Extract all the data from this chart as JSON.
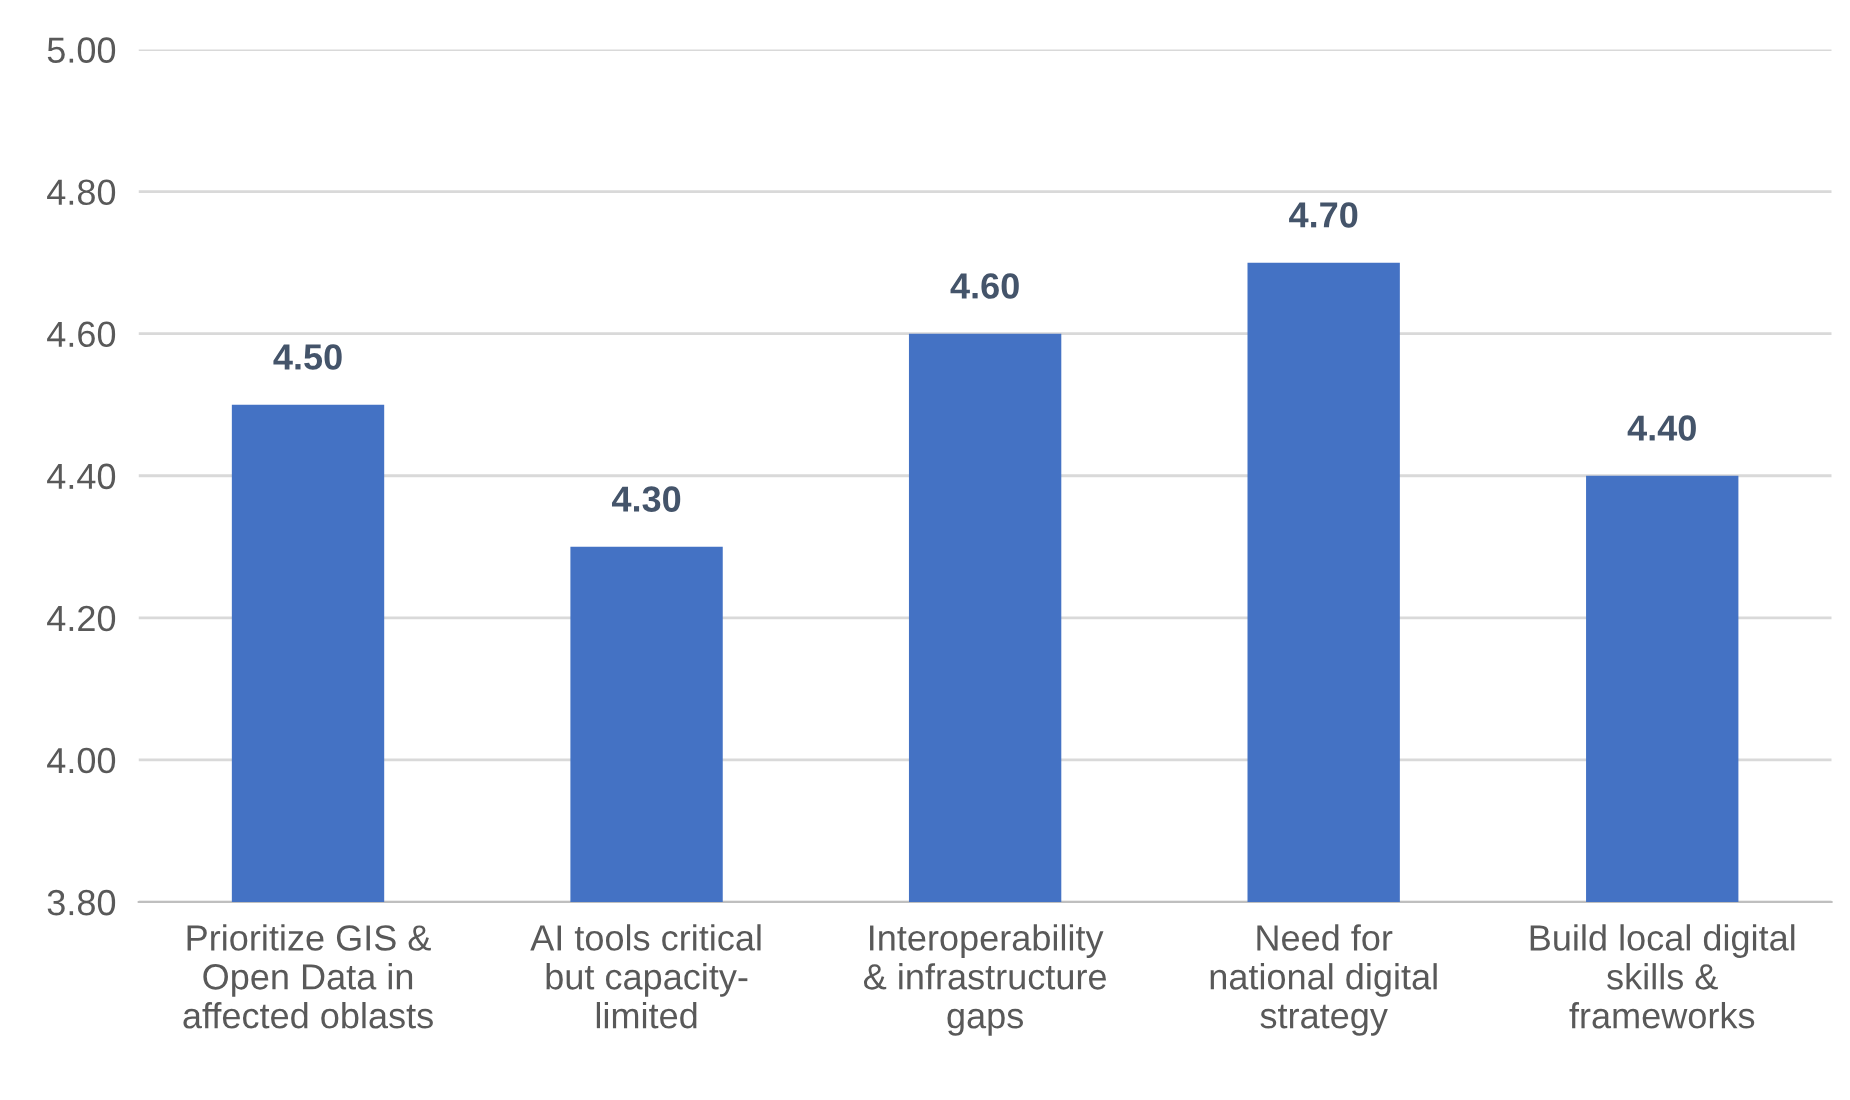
{
  "chart_data": {
    "type": "bar",
    "categories": [
      "Prioritize GIS &\nOpen Data in\naffected oblasts",
      "AI tools critical\nbut capacity-\nlimited",
      "Interoperability\n& infrastructure\ngaps",
      "Need for\nnational digital\nstrategy",
      "Build local digital\nskills &\nframeworks"
    ],
    "values": [
      4.5,
      4.3,
      4.6,
      4.7,
      4.4
    ],
    "value_labels": [
      "4.50",
      "4.30",
      "4.60",
      "4.70",
      "4.40"
    ],
    "color": "#4472c4",
    "ylim": [
      3.8,
      5.0
    ],
    "yticks": [
      {
        "value": 3.8,
        "label": "3.80"
      },
      {
        "value": 4.0,
        "label": "4.00"
      },
      {
        "value": 4.2,
        "label": "4.20"
      },
      {
        "value": 4.4,
        "label": "4.40"
      },
      {
        "value": 4.6,
        "label": "4.60"
      },
      {
        "value": 4.8,
        "label": "4.80"
      },
      {
        "value": 5.0,
        "label": "5.00"
      }
    ],
    "grid": "y",
    "legend": false
  }
}
